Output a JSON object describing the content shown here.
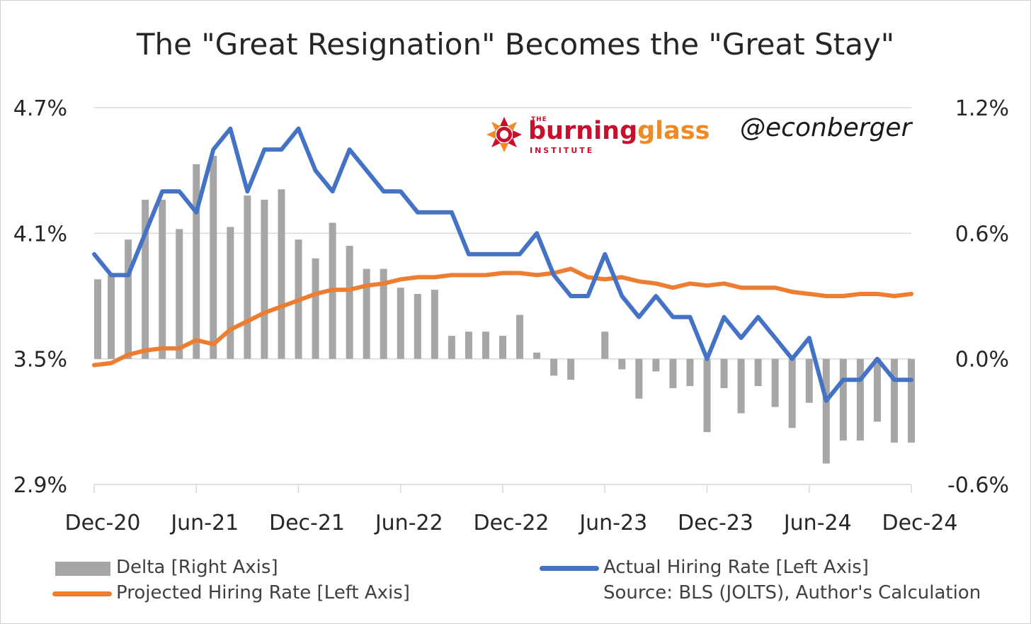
{
  "chart_data": {
    "type": "bar+line",
    "title": "The \"Great Resignation\" Becomes the \"Great Stay\"",
    "x_tick_labels": [
      "Dec-20",
      "Jun-21",
      "Dec-21",
      "Jun-22",
      "Dec-22",
      "Jun-23",
      "Dec-23",
      "Jun-24",
      "Dec-24"
    ],
    "x": [
      "Dec-20",
      "Jan-21",
      "Feb-21",
      "Mar-21",
      "Apr-21",
      "May-21",
      "Jun-21",
      "Jul-21",
      "Aug-21",
      "Sep-21",
      "Oct-21",
      "Nov-21",
      "Dec-21",
      "Jan-22",
      "Feb-22",
      "Mar-22",
      "Apr-22",
      "May-22",
      "Jun-22",
      "Jul-22",
      "Aug-22",
      "Sep-22",
      "Oct-22",
      "Nov-22",
      "Dec-22",
      "Jan-23",
      "Feb-23",
      "Mar-23",
      "Apr-23",
      "May-23",
      "Jun-23",
      "Jul-23",
      "Aug-23",
      "Sep-23",
      "Oct-23",
      "Nov-23",
      "Dec-23",
      "Jan-24",
      "Feb-24",
      "Mar-24",
      "Apr-24",
      "May-24",
      "Jun-24",
      "Jul-24",
      "Aug-24",
      "Sep-24",
      "Oct-24",
      "Nov-24",
      "Dec-24"
    ],
    "left_axis": {
      "ticks": [
        "4.7%",
        "4.1%",
        "3.5%",
        "2.9%"
      ],
      "ylim": [
        2.9,
        4.7
      ]
    },
    "right_axis": {
      "ticks": [
        "1.2%",
        "0.6%",
        "0.0%",
        "-0.6%"
      ],
      "ylim": [
        -0.6,
        1.2
      ]
    },
    "grid": true,
    "legend_position": "bottom",
    "series": [
      {
        "name": "Delta [Right Axis]",
        "type": "bar",
        "axis": "right",
        "color": "#a6a6a6",
        "values": [
          0.38,
          0.4,
          0.57,
          0.76,
          0.76,
          0.62,
          0.93,
          0.97,
          0.63,
          0.78,
          0.76,
          0.81,
          0.57,
          0.48,
          0.65,
          0.54,
          0.43,
          0.43,
          0.34,
          0.31,
          0.33,
          0.11,
          0.13,
          0.13,
          0.11,
          0.21,
          0.03,
          -0.08,
          -0.1,
          0.0,
          0.13,
          -0.05,
          -0.19,
          -0.06,
          -0.14,
          -0.13,
          -0.35,
          -0.14,
          -0.26,
          -0.13,
          -0.23,
          -0.33,
          -0.21,
          -0.5,
          -0.39,
          -0.39,
          -0.3,
          -0.4,
          -0.4
        ]
      },
      {
        "name": "Actual Hiring Rate [Left Axis]",
        "type": "line",
        "axis": "left",
        "color": "#4472c4",
        "values": [
          4.0,
          3.9,
          3.9,
          4.1,
          4.3,
          4.3,
          4.2,
          4.5,
          4.6,
          4.3,
          4.5,
          4.5,
          4.6,
          4.4,
          4.3,
          4.5,
          4.4,
          4.3,
          4.3,
          4.2,
          4.2,
          4.2,
          4.0,
          4.0,
          4.0,
          4.0,
          4.1,
          3.9,
          3.8,
          3.8,
          4.0,
          3.8,
          3.7,
          3.8,
          3.7,
          3.7,
          3.5,
          3.7,
          3.6,
          3.7,
          3.6,
          3.5,
          3.6,
          3.3,
          3.4,
          3.4,
          3.5,
          3.4,
          3.4
        ]
      },
      {
        "name": "Projected Hiring Rate [Left Axis]",
        "type": "line",
        "axis": "left",
        "color": "#ed7d31",
        "values": [
          3.47,
          3.48,
          3.52,
          3.54,
          3.55,
          3.55,
          3.59,
          3.57,
          3.64,
          3.68,
          3.72,
          3.75,
          3.78,
          3.81,
          3.83,
          3.83,
          3.85,
          3.86,
          3.88,
          3.89,
          3.89,
          3.9,
          3.9,
          3.9,
          3.91,
          3.91,
          3.9,
          3.91,
          3.93,
          3.89,
          3.88,
          3.89,
          3.87,
          3.86,
          3.84,
          3.86,
          3.85,
          3.86,
          3.84,
          3.84,
          3.84,
          3.82,
          3.81,
          3.8,
          3.8,
          3.81,
          3.81,
          3.8,
          3.81
        ]
      }
    ]
  },
  "branding": {
    "handle": "@econberger",
    "logo_the": "THE",
    "logo_burning": "burning",
    "logo_glass": "glass",
    "logo_institute": "INSTITUTE",
    "colors": {
      "red": "#c8102e",
      "orange": "#f08a24"
    }
  },
  "legend": {
    "delta": "Delta [Right Axis]",
    "actual": "Actual Hiring Rate [Left Axis]",
    "projected": "Projected Hiring Rate [Left Axis]",
    "source": "Source: BLS (JOLTS), Author's Calculation"
  }
}
